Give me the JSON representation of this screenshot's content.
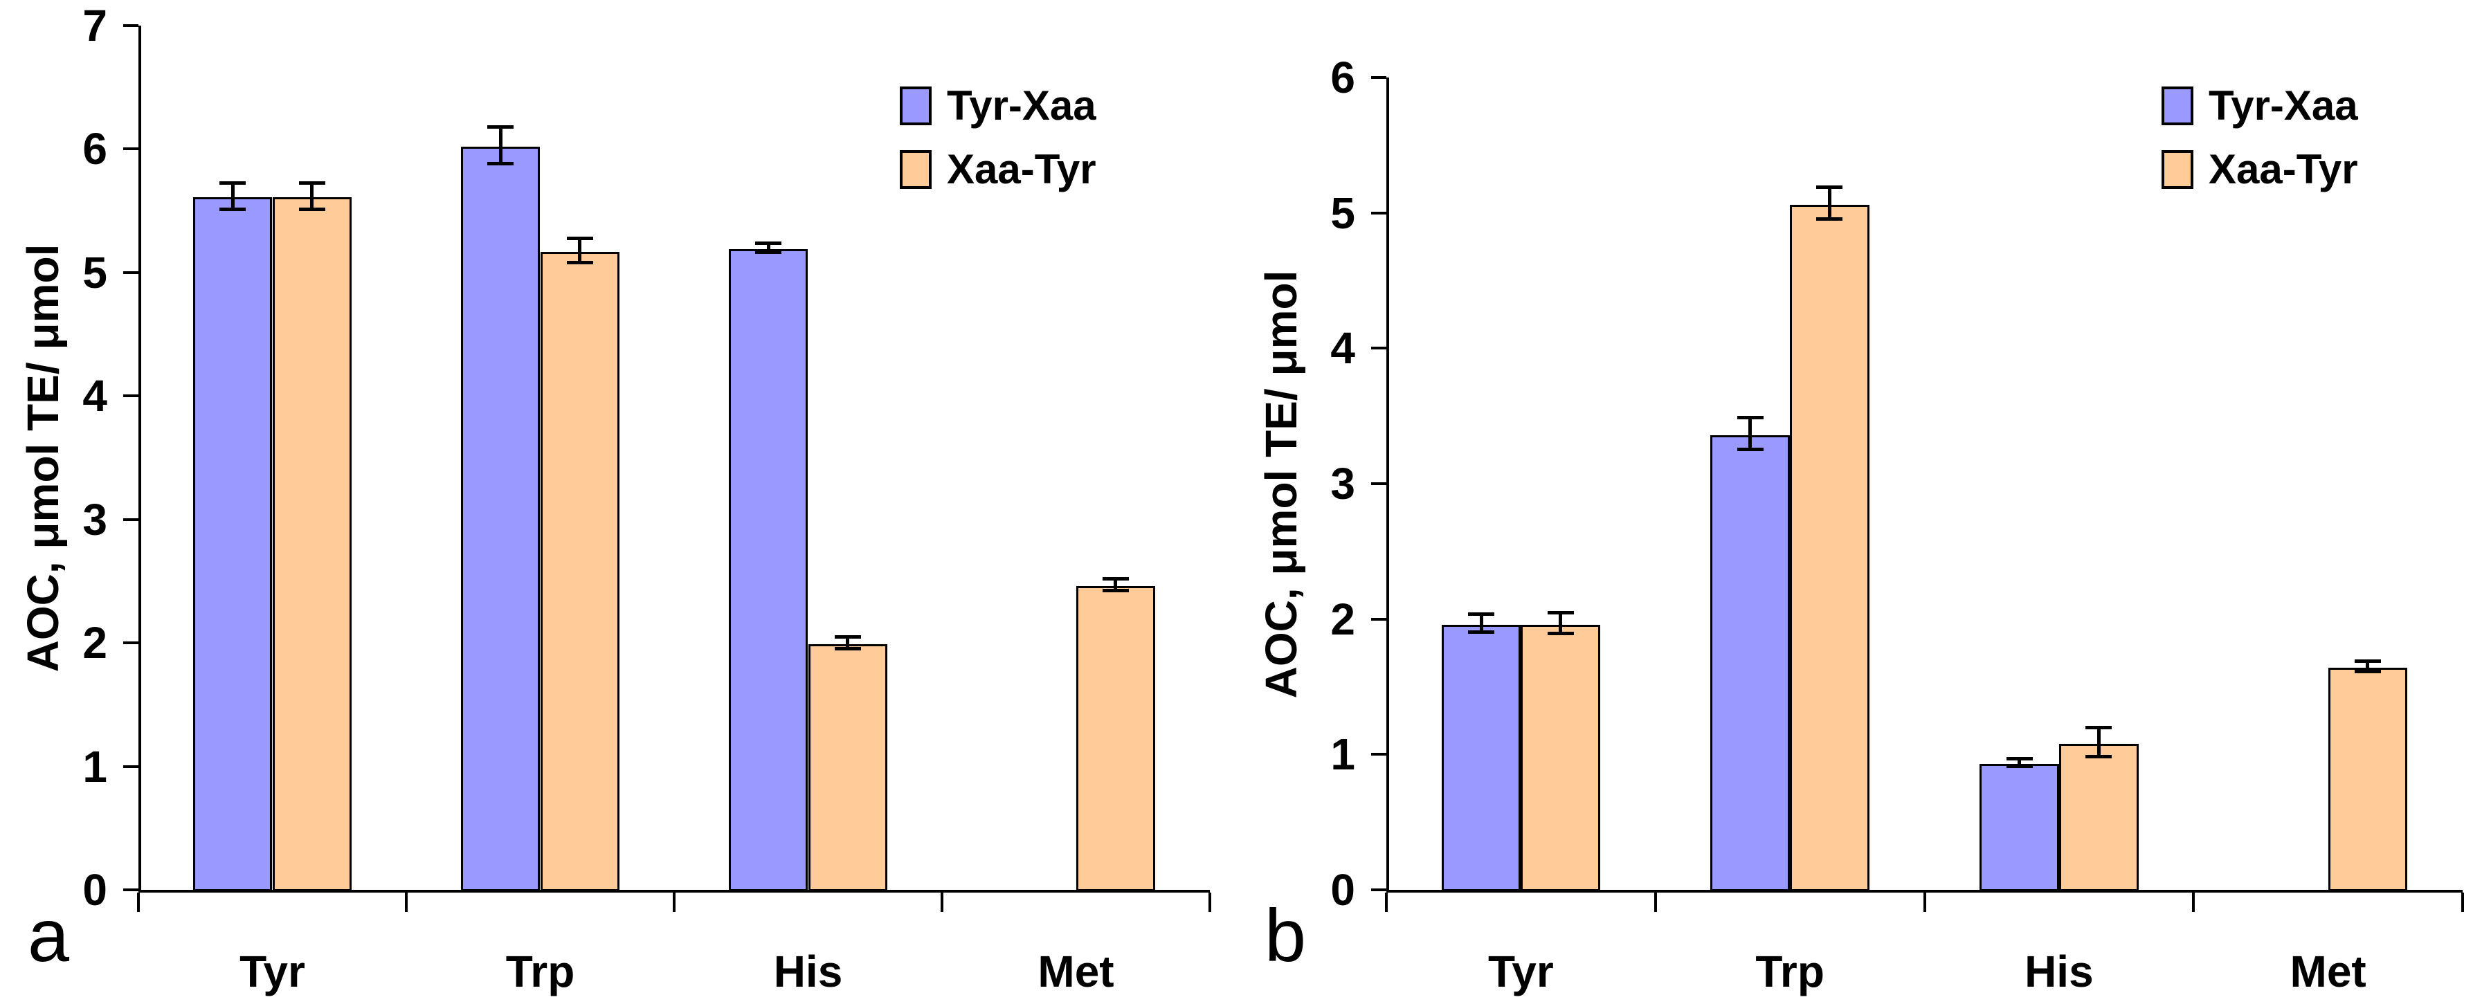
{
  "figure": {
    "description": "Two-panel bar chart figure comparing antioxidant capacity (AOC) of tyrosine-containing dipeptides Tyr-Xaa vs Xaa-Tyr",
    "accent_colors": {
      "series1": "#9999FF",
      "series2": "#FFCC99",
      "axis": "#000000",
      "background": "#FFFFFF"
    }
  },
  "chart_data": [
    {
      "type": "bar",
      "panel_label": "a",
      "title": "",
      "xlabel": "",
      "ylabel": "AOC, μmol TE/ μmol",
      "ylim": [
        0,
        7
      ],
      "yticks": [
        0,
        1,
        2,
        3,
        4,
        5,
        6,
        7
      ],
      "grid": false,
      "legend_position": "top-right",
      "error_bars": true,
      "categories": [
        "Tyr",
        "Trp",
        "His",
        "Met"
      ],
      "series": [
        {
          "name": "Tyr-Xaa",
          "color": "#9999FF",
          "values": [
            5.62,
            6.03,
            5.2,
            null
          ],
          "errors": [
            0.11,
            0.15,
            0.04,
            null
          ]
        },
        {
          "name": "Xaa-Tyr",
          "color": "#FFCC99",
          "values": [
            5.62,
            5.18,
            2.0,
            2.47
          ],
          "errors": [
            0.11,
            0.1,
            0.05,
            0.05
          ]
        }
      ]
    },
    {
      "type": "bar",
      "panel_label": "b",
      "title": "",
      "xlabel": "",
      "ylabel": "AOC, μmol TE/ μmol",
      "ylim": [
        0,
        6
      ],
      "yticks": [
        0,
        1,
        2,
        3,
        4,
        5,
        6
      ],
      "grid": false,
      "legend_position": "top-right",
      "error_bars": true,
      "categories": [
        "Tyr",
        "Trp",
        "His",
        "Met"
      ],
      "series": [
        {
          "name": "Tyr-Xaa",
          "color": "#9999FF",
          "values": [
            1.97,
            3.37,
            0.94,
            null
          ],
          "errors": [
            0.07,
            0.12,
            0.03,
            null
          ]
        },
        {
          "name": "Xaa-Tyr",
          "color": "#FFCC99",
          "values": [
            1.97,
            5.07,
            1.09,
            1.65
          ],
          "errors": [
            0.08,
            0.12,
            0.11,
            0.04
          ]
        }
      ]
    }
  ]
}
